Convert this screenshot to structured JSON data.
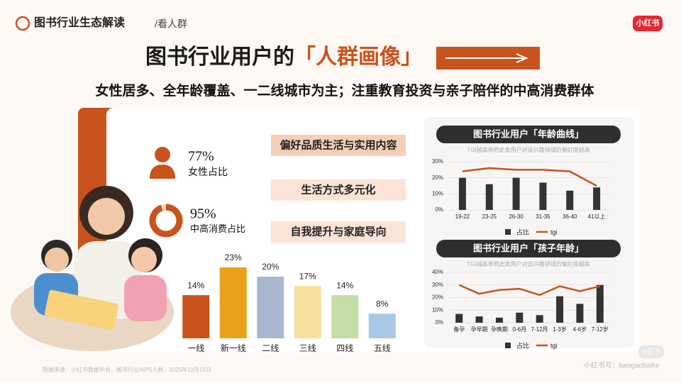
{
  "header": {
    "section": "图书行业生态解读",
    "subsection": "/看人群",
    "logo": "小红书"
  },
  "title_main": "图书行业用户的",
  "title_highlight": "「人群画像」",
  "subtitle": "女性居多、全年龄覆盖、一二线城市为主；注重教育投资与亲子陪伴的中高消费群体",
  "stats": [
    {
      "value": 77,
      "value_label": "77%",
      "label": "女性占比"
    },
    {
      "value": 95,
      "value_label": "95%",
      "label": "中高消费占比"
    }
  ],
  "tags": [
    "偏好品质生活与实用内容",
    "生活方式多元化",
    "自我提升与家庭导向"
  ],
  "footer": {
    "source": "数据来源：小红书数据中台，图书行业AIPS人群，2025年12月15日",
    "watermark": "小红书号：baogaobaike",
    "watermark_logo": "小红书"
  },
  "chart_data": [
    {
      "type": "bar",
      "categories": [
        "一线",
        "新一线",
        "二线",
        "三线",
        "四线",
        "五线"
      ],
      "values": [
        14,
        23,
        20,
        17,
        14,
        8
      ],
      "value_labels": [
        "14%",
        "23%",
        "20%",
        "17%",
        "14%",
        "8%"
      ],
      "colors": [
        "#c8531c",
        "#e8a21c",
        "#a9b8cf",
        "#f6e0a0",
        "#c4dca6",
        "#a9c8e6"
      ]
    },
    {
      "type": "combo",
      "title": "图书行业用户「年龄曲线」",
      "note": "TGI越高表明此类用户对该兴趣领域的偏好度越高",
      "categories": [
        "19-22",
        "23-25",
        "26-30",
        "31-35",
        "36-40",
        "41以上"
      ],
      "series": [
        {
          "name": "占比",
          "type": "bar",
          "color": "#333333",
          "values": [
            20,
            16,
            20,
            17,
            12,
            14
          ]
        },
        {
          "name": "tgi",
          "type": "line",
          "color": "#c8531c",
          "values": [
            24,
            26,
            25,
            25,
            24,
            15
          ]
        }
      ],
      "ylim": [
        0,
        30
      ],
      "yticks": [
        {
          "value": 0,
          "label": "0%"
        },
        {
          "value": 10,
          "label": "10%"
        },
        {
          "value": 20,
          "label": "20%"
        },
        {
          "value": 30,
          "label": "30%"
        }
      ],
      "grid": true
    },
    {
      "type": "combo",
      "title": "图书行业用户「孩子年龄」",
      "note": "TGI越高表明此类用户对该兴趣领域的偏好度越高",
      "categories": [
        "备孕",
        "孕早期",
        "孕晚期",
        "0-6月",
        "7-12月",
        "1-3岁",
        "4-6岁",
        "7-12岁"
      ],
      "series": [
        {
          "name": "占比",
          "type": "bar",
          "color": "#333333",
          "values": [
            7,
            5,
            4,
            8,
            6,
            21,
            15,
            30
          ]
        },
        {
          "name": "tgi",
          "type": "line",
          "color": "#c8531c",
          "values": [
            30,
            23,
            26,
            27,
            22,
            29,
            25,
            29
          ]
        }
      ],
      "ylim": [
        0,
        40
      ],
      "yticks": [
        {
          "value": 0,
          "label": "0%"
        },
        {
          "value": 10,
          "label": "10%"
        },
        {
          "value": 20,
          "label": "20%"
        },
        {
          "value": 30,
          "label": "30%"
        },
        {
          "value": 40,
          "label": "40%"
        }
      ],
      "grid": true
    }
  ]
}
